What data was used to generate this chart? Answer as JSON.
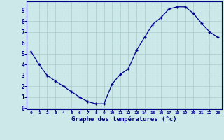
{
  "x": [
    0,
    1,
    2,
    3,
    4,
    5,
    6,
    7,
    8,
    9,
    10,
    11,
    12,
    13,
    14,
    15,
    16,
    17,
    18,
    19,
    20,
    21,
    22,
    23
  ],
  "y": [
    5.2,
    4.0,
    3.0,
    2.5,
    2.0,
    1.5,
    1.0,
    0.6,
    0.4,
    0.4,
    2.2,
    3.1,
    3.6,
    5.3,
    6.5,
    7.7,
    8.3,
    9.1,
    9.3,
    9.3,
    8.7,
    7.8,
    7.0,
    6.5
  ],
  "xlabel": "Graphe des températures (°c)",
  "xlim": [
    -0.5,
    23.5
  ],
  "ylim": [
    -0.1,
    9.8
  ],
  "yticks": [
    0,
    1,
    2,
    3,
    4,
    5,
    6,
    7,
    8,
    9
  ],
  "xticks": [
    0,
    1,
    2,
    3,
    4,
    5,
    6,
    7,
    8,
    9,
    10,
    11,
    12,
    13,
    14,
    15,
    16,
    17,
    18,
    19,
    20,
    21,
    22,
    23
  ],
  "line_color": "#00008B",
  "marker": "+",
  "bg_color": "#cce8e8",
  "grid_color": "#aacccc",
  "axis_label_color": "#00008B",
  "tick_label_color": "#00008B"
}
